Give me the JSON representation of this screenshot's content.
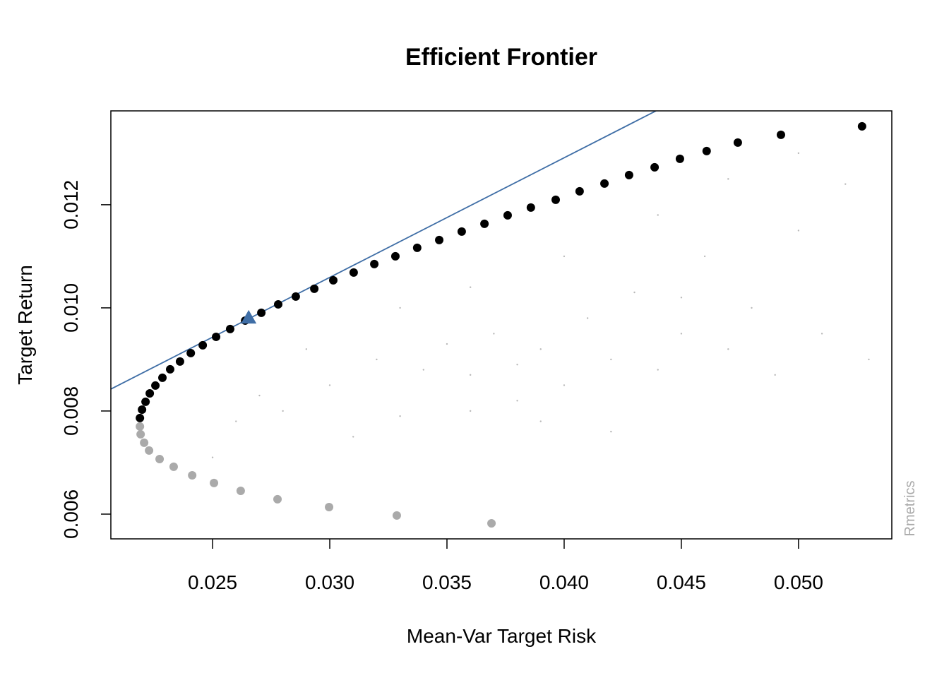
{
  "chart_data": {
    "type": "scatter",
    "title": "Efficient Frontier",
    "x_label": "Mean-Var Target Risk",
    "y_label": "Target Return",
    "watermark": "Rmetrics",
    "xlim": [
      0.02066,
      0.05398
    ],
    "ylim": [
      0.00552,
      0.01382
    ],
    "xticks": [
      0.025,
      {
        "value": 0.03,
        "label": "0.030"
      },
      0.035,
      {
        "value": 0.04,
        "label": "0.040"
      },
      0.045,
      {
        "value": 0.05,
        "label": "0.050"
      }
    ],
    "yticks": [
      0.006,
      0.008,
      {
        "value": 0.01,
        "label": "0.010"
      },
      0.012
    ],
    "series": [
      {
        "type": "scatter",
        "marker": "dot",
        "size": 1.2,
        "color": "#b8b8b8",
        "x": [
          0.03,
          0.032,
          0.034,
          0.035,
          0.036,
          0.037,
          0.038,
          0.039,
          0.04,
          0.041,
          0.042,
          0.043,
          0.044,
          0.045,
          0.046,
          0.047,
          0.048,
          0.049,
          0.05,
          0.051,
          0.052,
          0.053,
          0.028,
          0.026,
          0.025,
          0.031,
          0.033,
          0.036,
          0.039,
          0.042,
          0.033,
          0.036,
          0.04,
          0.044,
          0.047,
          0.05,
          0.029,
          0.027,
          0.045,
          0.038
        ],
        "values": [
          0.0085,
          0.009,
          0.0088,
          0.0093,
          0.0087,
          0.0095,
          0.0089,
          0.0092,
          0.0085,
          0.0098,
          0.009,
          0.0103,
          0.0088,
          0.0095,
          0.011,
          0.0092,
          0.01,
          0.0087,
          0.0115,
          0.0095,
          0.0124,
          0.009,
          0.008,
          0.0078,
          0.0071,
          0.0075,
          0.0079,
          0.008,
          0.0078,
          0.0076,
          0.01,
          0.0104,
          0.011,
          0.0118,
          0.0125,
          0.013,
          0.0092,
          0.0083,
          0.0102,
          0.0082
        ]
      },
      {
        "type": "line",
        "color": "#3f6ea6",
        "x": [
          0.02066,
          0.04392
        ],
        "values": [
          0.008425,
          0.01382
        ]
      },
      {
        "type": "scatter",
        "marker": "dot",
        "size": 6,
        "color": "#aaaaaa",
        "x": [
          0.0219,
          0.02193,
          0.02208,
          0.02229,
          0.02274,
          0.02334,
          0.02413,
          0.02506,
          0.0262,
          0.02777,
          0.02997,
          0.03286,
          0.0369
        ],
        "values": [
          0.007699,
          0.007548,
          0.007384,
          0.007233,
          0.007068,
          0.006918,
          0.006753,
          0.006603,
          0.006452,
          0.006288,
          0.006137,
          0.005973,
          0.005822
        ]
      },
      {
        "type": "scatter",
        "marker": "dot",
        "size": 6,
        "color": "#000000",
        "x": [
          0.0219,
          0.02199,
          0.02214,
          0.02232,
          0.02256,
          0.02286,
          0.02319,
          0.02361,
          0.02407,
          0.02458,
          0.02515,
          0.02575,
          0.02639,
          0.02708,
          0.0278,
          0.02855,
          0.02934,
          0.03015,
          0.03102,
          0.0319,
          0.0328,
          0.03373,
          0.03467,
          0.03563,
          0.0366,
          0.03759,
          0.03858,
          0.03964,
          0.04066,
          0.04172,
          0.04277,
          0.04386,
          0.04494,
          0.04608,
          0.04741,
          0.04925,
          0.05271
        ],
        "values": [
          0.007863,
          0.008027,
          0.008178,
          0.008342,
          0.008493,
          0.008644,
          0.008808,
          0.008959,
          0.009123,
          0.009274,
          0.009438,
          0.009589,
          0.009753,
          0.009904,
          0.010068,
          0.010219,
          0.01037,
          0.010534,
          0.010685,
          0.010849,
          0.011,
          0.011164,
          0.011315,
          0.011479,
          0.01163,
          0.011795,
          0.011945,
          0.012096,
          0.01226,
          0.012411,
          0.012575,
          0.012726,
          0.01289,
          0.013041,
          0.013205,
          0.013356,
          0.013521
        ]
      },
      {
        "type": "scatter",
        "marker": "triangle",
        "size": 11,
        "color": "#3f6ea6",
        "x": [
          0.02654
        ],
        "values": [
          0.009808
        ]
      }
    ]
  }
}
